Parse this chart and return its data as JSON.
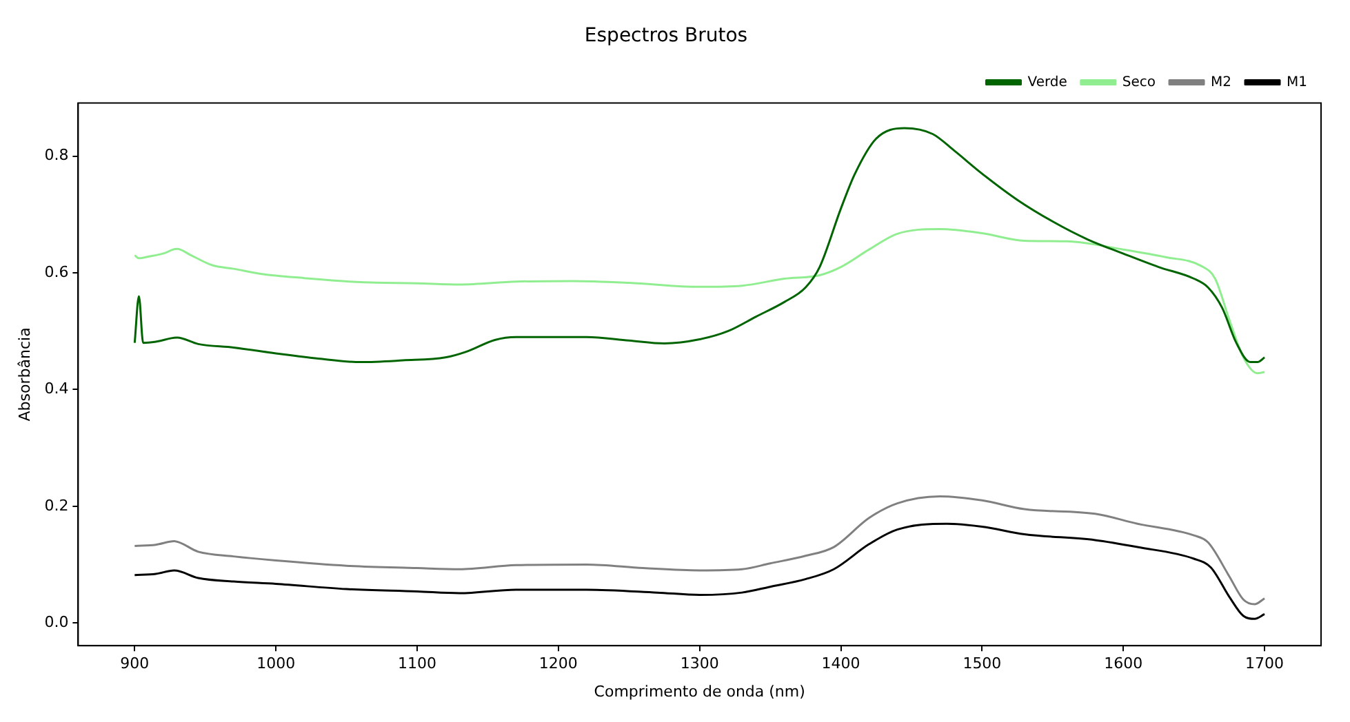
{
  "chart_data": {
    "type": "line",
    "title": "Espectros Brutos",
    "xlabel": "Comprimento de onda (nm)",
    "ylabel": "Absorbância",
    "xlim": [
      860,
      1740
    ],
    "xticks": [
      900,
      1000,
      1100,
      1200,
      1300,
      1400,
      1500,
      1600,
      1700
    ],
    "ylim": [
      -0.039,
      0.891
    ],
    "yticks": [
      {
        "value": 0,
        "label": "0.0"
      },
      0.2,
      0.4,
      0.6,
      0.8
    ],
    "grid": false,
    "legend": "top right",
    "marker": "none",
    "line_style": "solid",
    "series": [
      {
        "name": "Verde",
        "color": "#006400",
        "x": [
          900,
          903,
          906,
          915,
          930,
          945,
          970,
          1000,
          1030,
          1060,
          1090,
          1120,
          1135,
          1155,
          1170,
          1220,
          1250,
          1275,
          1300,
          1320,
          1340,
          1360,
          1375,
          1385,
          1400,
          1410,
          1425,
          1445,
          1465,
          1480,
          1500,
          1525,
          1550,
          1575,
          1600,
          1625,
          1650,
          1660,
          1670,
          1680,
          1690,
          1695,
          1700
        ],
        "values": [
          0.48,
          0.56,
          0.48,
          0.482,
          0.489,
          0.478,
          0.472,
          0.462,
          0.453,
          0.447,
          0.45,
          0.455,
          0.465,
          0.485,
          0.49,
          0.49,
          0.484,
          0.479,
          0.486,
          0.5,
          0.525,
          0.55,
          0.575,
          0.61,
          0.71,
          0.77,
          0.83,
          0.848,
          0.838,
          0.81,
          0.77,
          0.725,
          0.688,
          0.657,
          0.633,
          0.61,
          0.59,
          0.575,
          0.54,
          0.48,
          0.447,
          0.447,
          0.455
        ]
      },
      {
        "name": "Seco",
        "color": "#90ee90",
        "x": [
          900,
          903,
          910,
          920,
          930,
          940,
          955,
          970,
          990,
          1020,
          1060,
          1100,
          1130,
          1170,
          1210,
          1250,
          1300,
          1330,
          1360,
          1385,
          1400,
          1420,
          1440,
          1470,
          1500,
          1530,
          1560,
          1600,
          1630,
          1655,
          1665,
          1675,
          1685,
          1695,
          1700
        ],
        "values": [
          0.63,
          0.625,
          0.628,
          0.633,
          0.641,
          0.63,
          0.613,
          0.607,
          0.598,
          0.591,
          0.584,
          0.582,
          0.58,
          0.585,
          0.586,
          0.583,
          0.576,
          0.578,
          0.59,
          0.596,
          0.61,
          0.64,
          0.667,
          0.675,
          0.668,
          0.655,
          0.654,
          0.64,
          0.627,
          0.612,
          0.59,
          0.52,
          0.455,
          0.428,
          0.43
        ]
      },
      {
        "name": "M2",
        "color": "#808080",
        "x": [
          900,
          915,
          928,
          945,
          970,
          1000,
          1050,
          1100,
          1130,
          1170,
          1220,
          1260,
          1300,
          1330,
          1350,
          1375,
          1395,
          1420,
          1440,
          1470,
          1500,
          1530,
          1580,
          1610,
          1650,
          1660,
          1675,
          1685,
          1693,
          1700
        ],
        "values": [
          0.132,
          0.134,
          0.14,
          0.122,
          0.114,
          0.107,
          0.098,
          0.094,
          0.092,
          0.099,
          0.1,
          0.094,
          0.09,
          0.092,
          0.102,
          0.115,
          0.13,
          0.18,
          0.205,
          0.217,
          0.21,
          0.195,
          0.187,
          0.17,
          0.15,
          0.138,
          0.08,
          0.04,
          0.032,
          0.042
        ]
      },
      {
        "name": "M1",
        "color": "#000000",
        "x": [
          900,
          915,
          928,
          945,
          970,
          1000,
          1050,
          1100,
          1130,
          1170,
          1220,
          1270,
          1300,
          1330,
          1350,
          1375,
          1395,
          1420,
          1440,
          1475,
          1500,
          1530,
          1580,
          1610,
          1650,
          1662,
          1675,
          1685,
          1693,
          1700
        ],
        "values": [
          0.082,
          0.084,
          0.09,
          0.077,
          0.071,
          0.067,
          0.058,
          0.054,
          0.051,
          0.057,
          0.057,
          0.052,
          0.048,
          0.052,
          0.062,
          0.075,
          0.092,
          0.135,
          0.16,
          0.17,
          0.165,
          0.152,
          0.142,
          0.13,
          0.11,
          0.095,
          0.045,
          0.012,
          0.007,
          0.015
        ]
      }
    ]
  }
}
